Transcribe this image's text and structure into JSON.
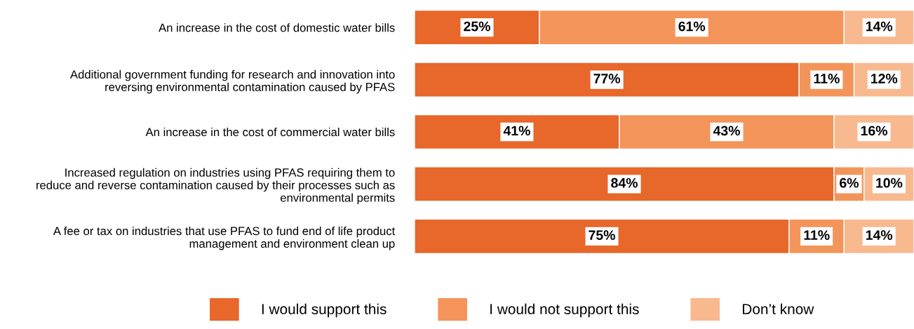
{
  "chart_data": {
    "type": "bar",
    "orientation": "horizontal",
    "stacked": true,
    "tick_labels": "y",
    "grid": false,
    "legend": "bottom",
    "categories": [
      "An increase in the cost of domestic water bills",
      "Additional government funding for research and innovation into\nreversing environmental contamination caused by PFAS",
      "An increase in the cost of commercial water bills",
      "Increased regulation on industries using PFAS requiring them to\nreduce and reverse contamination caused by their processes such as\nenvironmental permits",
      "A fee or tax on industries that use PFAS to fund end of life product\nmanagement and environment clean up"
    ],
    "series": [
      {
        "name": "I would support this",
        "color": "#e8672a",
        "values": [
          25,
          77,
          41,
          84,
          75
        ],
        "value_labels": [
          "25%",
          "77%",
          "41%",
          "84%",
          "75%"
        ]
      },
      {
        "name": "I would not support this",
        "color": "#f3955a",
        "values": [
          61,
          11,
          43,
          6,
          11
        ],
        "value_labels": [
          "61%",
          "11%",
          "43%",
          "6%",
          "11%"
        ]
      },
      {
        "name": "Don’t know",
        "color": "#f8b98f",
        "values": [
          14,
          12,
          16,
          10,
          14
        ],
        "value_labels": [
          "14%",
          "12%",
          "16%",
          "10%",
          "14%"
        ]
      }
    ]
  }
}
